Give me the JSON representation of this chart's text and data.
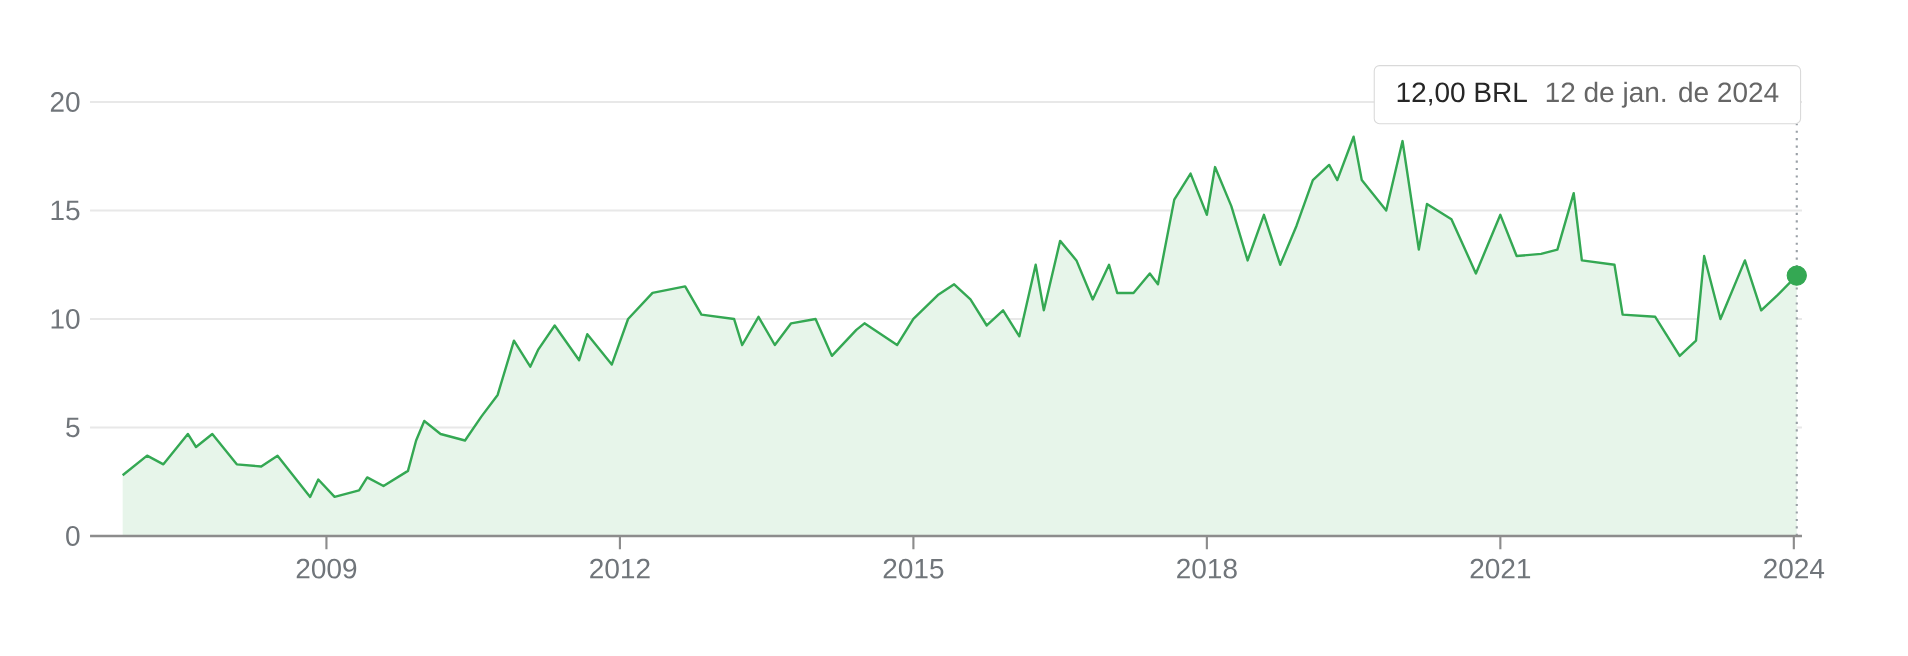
{
  "chart_data": {
    "type": "area",
    "color": "#34a853",
    "grid": "y",
    "ref_lines": [
      {
        "axis": "x",
        "value": "2024-01-12",
        "line_style": "dotted",
        "color": "#9aa0a6"
      }
    ],
    "series": [
      {
        "type": "scatter",
        "x": [
          "2024-01-12"
        ],
        "values": [
          12.0
        ],
        "color": "#34a853"
      }
    ],
    "x": [
      "2006-12",
      "2007-03",
      "2007-05",
      "2007-08",
      "2007-09",
      "2007-11",
      "2008-02",
      "2008-05",
      "2008-07",
      "2008-11",
      "2008-12",
      "2009-02",
      "2009-05",
      "2009-06",
      "2009-08",
      "2009-11",
      "2009-12",
      "2010-01",
      "2010-03",
      "2010-06",
      "2010-08",
      "2010-10",
      "2010-12",
      "2011-02",
      "2011-03",
      "2011-05",
      "2011-08",
      "2011-09",
      "2011-12",
      "2012-02",
      "2012-05",
      "2012-09",
      "2012-11",
      "2013-03",
      "2013-04",
      "2013-06",
      "2013-08",
      "2013-10",
      "2014-01",
      "2014-03",
      "2014-06",
      "2014-07",
      "2014-11",
      "2015-01",
      "2015-04",
      "2015-06",
      "2015-08",
      "2015-10",
      "2015-12",
      "2016-02",
      "2016-04",
      "2016-05",
      "2016-07",
      "2016-09",
      "2016-11",
      "2017-01",
      "2017-02",
      "2017-04",
      "2017-06",
      "2017-07",
      "2017-09",
      "2017-11",
      "2018-01",
      "2018-02",
      "2018-04",
      "2018-06",
      "2018-08",
      "2018-10",
      "2018-12",
      "2019-02",
      "2019-04",
      "2019-05",
      "2019-07",
      "2019-08",
      "2019-11",
      "2020-01",
      "2020-03",
      "2020-04",
      "2020-07",
      "2020-10",
      "2021-01",
      "2021-03",
      "2021-06",
      "2021-08",
      "2021-10",
      "2021-11",
      "2022-03",
      "2022-04",
      "2022-08",
      "2022-11",
      "2023-01",
      "2023-02",
      "2023-04",
      "2023-07",
      "2023-09",
      "2023-11",
      "2024-01-12"
    ],
    "values": [
      2.8,
      3.7,
      3.3,
      4.7,
      4.1,
      4.7,
      3.3,
      3.2,
      3.7,
      1.8,
      2.6,
      1.8,
      2.1,
      2.7,
      2.3,
      3.0,
      4.4,
      5.3,
      4.7,
      4.4,
      5.5,
      6.5,
      9.0,
      7.8,
      8.6,
      9.7,
      8.1,
      9.3,
      7.9,
      10.0,
      11.2,
      11.5,
      10.2,
      10.0,
      8.8,
      10.1,
      8.8,
      9.8,
      10.0,
      8.3,
      9.5,
      9.8,
      8.8,
      10.0,
      11.1,
      11.6,
      10.9,
      9.7,
      10.4,
      9.2,
      12.5,
      10.4,
      13.6,
      12.7,
      10.9,
      12.5,
      11.2,
      11.2,
      12.1,
      11.6,
      15.5,
      16.7,
      14.8,
      17.0,
      15.2,
      12.7,
      14.8,
      12.5,
      14.3,
      16.4,
      17.1,
      16.4,
      18.4,
      16.4,
      15.0,
      18.2,
      13.2,
      15.3,
      14.6,
      12.1,
      14.8,
      12.9,
      13.0,
      13.2,
      15.8,
      12.7,
      12.5,
      10.2,
      10.1,
      8.3,
      9.0,
      12.9,
      10.0,
      12.7,
      10.4,
      11.1,
      12.0
    ],
    "xlim": [
      "2006-08",
      "2024-02"
    ],
    "xticks": [
      "2009",
      "2012",
      "2015",
      "2018",
      "2021",
      "2024"
    ],
    "ylim": [
      0,
      20
    ],
    "yticks": [
      0,
      5,
      10,
      15,
      20
    ],
    "annotations": [
      "12,00 BRL",
      "12 de jan. de 2024"
    ]
  }
}
